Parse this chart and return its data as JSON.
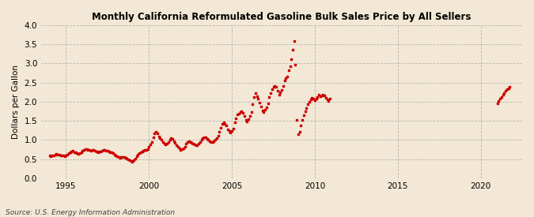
{
  "title": "Monthly California Reformulated Gasoline Bulk Sales Price by All Sellers",
  "ylabel": "Dollars per Gallon",
  "source": "Source: U.S. Energy Information Administration",
  "background_color": "#f2e8d5",
  "marker_color": "#cc0000",
  "ylim": [
    0.0,
    4.0
  ],
  "yticks": [
    0.0,
    0.5,
    1.0,
    1.5,
    2.0,
    2.5,
    3.0,
    3.5,
    4.0
  ],
  "xticks": [
    1995,
    2000,
    2005,
    2010,
    2015,
    2020
  ],
  "xlim": [
    1993.5,
    2022.5
  ],
  "data": [
    [
      1994.0,
      0.59
    ],
    [
      1994.083,
      0.58
    ],
    [
      1994.167,
      0.59
    ],
    [
      1994.25,
      0.6
    ],
    [
      1994.333,
      0.61
    ],
    [
      1994.417,
      0.63
    ],
    [
      1994.5,
      0.62
    ],
    [
      1994.583,
      0.61
    ],
    [
      1994.667,
      0.6
    ],
    [
      1994.75,
      0.6
    ],
    [
      1994.833,
      0.59
    ],
    [
      1994.917,
      0.58
    ],
    [
      1995.0,
      0.6
    ],
    [
      1995.083,
      0.62
    ],
    [
      1995.167,
      0.65
    ],
    [
      1995.25,
      0.68
    ],
    [
      1995.333,
      0.7
    ],
    [
      1995.417,
      0.71
    ],
    [
      1995.5,
      0.68
    ],
    [
      1995.583,
      0.67
    ],
    [
      1995.667,
      0.65
    ],
    [
      1995.75,
      0.63
    ],
    [
      1995.833,
      0.65
    ],
    [
      1995.917,
      0.67
    ],
    [
      1996.0,
      0.72
    ],
    [
      1996.083,
      0.75
    ],
    [
      1996.167,
      0.77
    ],
    [
      1996.25,
      0.76
    ],
    [
      1996.333,
      0.75
    ],
    [
      1996.417,
      0.73
    ],
    [
      1996.5,
      0.72
    ],
    [
      1996.583,
      0.74
    ],
    [
      1996.667,
      0.74
    ],
    [
      1996.75,
      0.72
    ],
    [
      1996.833,
      0.7
    ],
    [
      1996.917,
      0.68
    ],
    [
      1997.0,
      0.69
    ],
    [
      1997.083,
      0.7
    ],
    [
      1997.167,
      0.72
    ],
    [
      1997.25,
      0.73
    ],
    [
      1997.333,
      0.73
    ],
    [
      1997.417,
      0.72
    ],
    [
      1997.5,
      0.71
    ],
    [
      1997.583,
      0.7
    ],
    [
      1997.667,
      0.68
    ],
    [
      1997.75,
      0.67
    ],
    [
      1997.833,
      0.65
    ],
    [
      1997.917,
      0.62
    ],
    [
      1998.0,
      0.59
    ],
    [
      1998.083,
      0.57
    ],
    [
      1998.167,
      0.55
    ],
    [
      1998.25,
      0.54
    ],
    [
      1998.333,
      0.55
    ],
    [
      1998.417,
      0.56
    ],
    [
      1998.5,
      0.55
    ],
    [
      1998.583,
      0.54
    ],
    [
      1998.667,
      0.52
    ],
    [
      1998.75,
      0.5
    ],
    [
      1998.833,
      0.48
    ],
    [
      1998.917,
      0.46
    ],
    [
      1999.0,
      0.44
    ],
    [
      1999.083,
      0.47
    ],
    [
      1999.167,
      0.52
    ],
    [
      1999.25,
      0.57
    ],
    [
      1999.333,
      0.62
    ],
    [
      1999.417,
      0.66
    ],
    [
      1999.5,
      0.68
    ],
    [
      1999.583,
      0.7
    ],
    [
      1999.667,
      0.72
    ],
    [
      1999.75,
      0.74
    ],
    [
      1999.833,
      0.75
    ],
    [
      1999.917,
      0.77
    ],
    [
      2000.0,
      0.82
    ],
    [
      2000.083,
      0.88
    ],
    [
      2000.167,
      0.95
    ],
    [
      2000.25,
      1.08
    ],
    [
      2000.333,
      1.18
    ],
    [
      2000.417,
      1.22
    ],
    [
      2000.5,
      1.18
    ],
    [
      2000.583,
      1.1
    ],
    [
      2000.667,
      1.05
    ],
    [
      2000.75,
      1.0
    ],
    [
      2000.833,
      0.94
    ],
    [
      2000.917,
      0.9
    ],
    [
      2001.0,
      0.88
    ],
    [
      2001.083,
      0.9
    ],
    [
      2001.167,
      0.95
    ],
    [
      2001.25,
      1.0
    ],
    [
      2001.333,
      1.04
    ],
    [
      2001.417,
      1.02
    ],
    [
      2001.5,
      0.97
    ],
    [
      2001.583,
      0.92
    ],
    [
      2001.667,
      0.87
    ],
    [
      2001.75,
      0.82
    ],
    [
      2001.833,
      0.79
    ],
    [
      2001.917,
      0.75
    ],
    [
      2002.0,
      0.76
    ],
    [
      2002.083,
      0.78
    ],
    [
      2002.167,
      0.82
    ],
    [
      2002.25,
      0.9
    ],
    [
      2002.333,
      0.95
    ],
    [
      2002.417,
      0.97
    ],
    [
      2002.5,
      0.95
    ],
    [
      2002.583,
      0.93
    ],
    [
      2002.667,
      0.91
    ],
    [
      2002.75,
      0.89
    ],
    [
      2002.833,
      0.87
    ],
    [
      2002.917,
      0.86
    ],
    [
      2003.0,
      0.9
    ],
    [
      2003.083,
      0.95
    ],
    [
      2003.167,
      1.0
    ],
    [
      2003.25,
      1.05
    ],
    [
      2003.333,
      1.08
    ],
    [
      2003.417,
      1.06
    ],
    [
      2003.5,
      1.03
    ],
    [
      2003.583,
      1.0
    ],
    [
      2003.667,
      0.97
    ],
    [
      2003.75,
      0.95
    ],
    [
      2003.833,
      0.94
    ],
    [
      2003.917,
      0.97
    ],
    [
      2004.0,
      1.0
    ],
    [
      2004.083,
      1.05
    ],
    [
      2004.167,
      1.12
    ],
    [
      2004.25,
      1.22
    ],
    [
      2004.333,
      1.32
    ],
    [
      2004.417,
      1.42
    ],
    [
      2004.5,
      1.46
    ],
    [
      2004.583,
      1.42
    ],
    [
      2004.667,
      1.37
    ],
    [
      2004.75,
      1.28
    ],
    [
      2004.833,
      1.23
    ],
    [
      2004.917,
      1.2
    ],
    [
      2005.0,
      1.24
    ],
    [
      2005.083,
      1.3
    ],
    [
      2005.167,
      1.47
    ],
    [
      2005.25,
      1.57
    ],
    [
      2005.333,
      1.66
    ],
    [
      2005.417,
      1.68
    ],
    [
      2005.5,
      1.72
    ],
    [
      2005.583,
      1.75
    ],
    [
      2005.667,
      1.7
    ],
    [
      2005.75,
      1.62
    ],
    [
      2005.833,
      1.52
    ],
    [
      2005.917,
      1.48
    ],
    [
      2006.0,
      1.55
    ],
    [
      2006.083,
      1.62
    ],
    [
      2006.167,
      1.73
    ],
    [
      2006.25,
      1.93
    ],
    [
      2006.333,
      2.12
    ],
    [
      2006.417,
      2.22
    ],
    [
      2006.5,
      2.14
    ],
    [
      2006.583,
      2.08
    ],
    [
      2006.667,
      1.98
    ],
    [
      2006.75,
      1.88
    ],
    [
      2006.833,
      1.78
    ],
    [
      2006.917,
      1.74
    ],
    [
      2007.0,
      1.8
    ],
    [
      2007.083,
      1.86
    ],
    [
      2007.167,
      1.96
    ],
    [
      2007.25,
      2.12
    ],
    [
      2007.333,
      2.22
    ],
    [
      2007.417,
      2.32
    ],
    [
      2007.5,
      2.38
    ],
    [
      2007.583,
      2.42
    ],
    [
      2007.667,
      2.38
    ],
    [
      2007.75,
      2.28
    ],
    [
      2007.833,
      2.18
    ],
    [
      2007.917,
      2.24
    ],
    [
      2008.0,
      2.3
    ],
    [
      2008.083,
      2.42
    ],
    [
      2008.167,
      2.56
    ],
    [
      2008.25,
      2.62
    ],
    [
      2008.333,
      2.66
    ],
    [
      2008.417,
      2.82
    ],
    [
      2008.5,
      2.92
    ],
    [
      2008.583,
      3.12
    ],
    [
      2008.667,
      3.36
    ],
    [
      2008.75,
      3.58
    ],
    [
      2008.833,
      2.96
    ],
    [
      2008.917,
      1.52
    ],
    [
      2009.0,
      1.15
    ],
    [
      2009.083,
      1.22
    ],
    [
      2009.167,
      1.38
    ],
    [
      2009.25,
      1.52
    ],
    [
      2009.333,
      1.65
    ],
    [
      2009.417,
      1.75
    ],
    [
      2009.5,
      1.84
    ],
    [
      2009.583,
      1.94
    ],
    [
      2009.667,
      2.0
    ],
    [
      2009.75,
      2.05
    ],
    [
      2009.833,
      2.1
    ],
    [
      2009.917,
      2.08
    ],
    [
      2010.0,
      2.04
    ],
    [
      2010.083,
      2.08
    ],
    [
      2010.167,
      2.12
    ],
    [
      2010.25,
      2.18
    ],
    [
      2010.333,
      2.14
    ],
    [
      2010.417,
      2.16
    ],
    [
      2010.5,
      2.18
    ],
    [
      2010.583,
      2.16
    ],
    [
      2010.667,
      2.1
    ],
    [
      2010.75,
      2.06
    ],
    [
      2010.833,
      2.02
    ],
    [
      2010.917,
      2.08
    ],
    [
      2021.0,
      1.95
    ],
    [
      2021.083,
      2.02
    ],
    [
      2021.167,
      2.08
    ],
    [
      2021.25,
      2.12
    ],
    [
      2021.333,
      2.18
    ],
    [
      2021.417,
      2.22
    ],
    [
      2021.5,
      2.28
    ],
    [
      2021.583,
      2.32
    ],
    [
      2021.667,
      2.35
    ],
    [
      2021.75,
      2.38
    ]
  ]
}
